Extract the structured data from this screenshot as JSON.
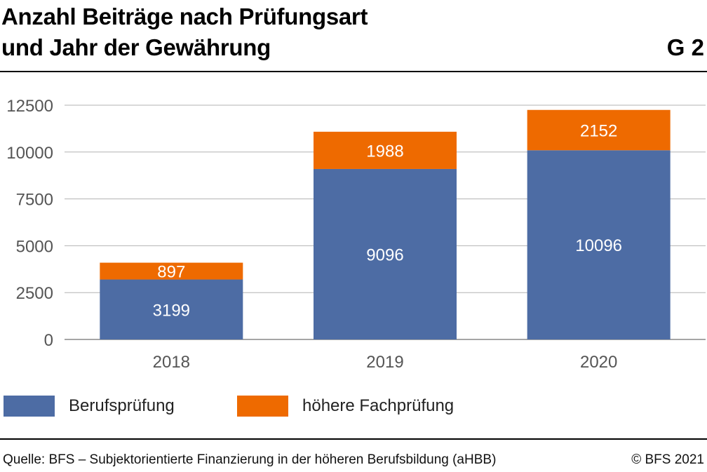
{
  "header": {
    "title_line1": "Anzahl Beiträge nach Prüfungsart",
    "title_line2": "und Jahr der Gewährung",
    "chart_code": "G 2"
  },
  "chart_data": {
    "type": "bar",
    "stacked": true,
    "title": "Anzahl Beiträge nach Prüfungsart und Jahr der Gewährung",
    "categories": [
      "2018",
      "2019",
      "2020"
    ],
    "series": [
      {
        "name": "Berufsprüfung",
        "values": [
          3199,
          9096,
          10096
        ],
        "color": "#4d6ca4"
      },
      {
        "name": "höhere Fachprüfung",
        "values": [
          897,
          1988,
          2152
        ],
        "color": "#ee6a00"
      }
    ],
    "ylim": [
      0,
      12500
    ],
    "yticks": [
      0,
      2500,
      5000,
      7500,
      10000,
      12500
    ],
    "grid": true,
    "legend": "bottom-left",
    "xlabel": "",
    "ylabel": ""
  },
  "legend": {
    "items": [
      {
        "label": "Berufsprüfung",
        "color": "#4d6ca4"
      },
      {
        "label": "höhere Fachprüfung",
        "color": "#ee6a00"
      }
    ]
  },
  "footer": {
    "source": "Quelle: BFS – Subjektorientierte Finanzierung in der höheren Berufsbildung (aHBB)",
    "copyright": "© BFS 2021"
  }
}
